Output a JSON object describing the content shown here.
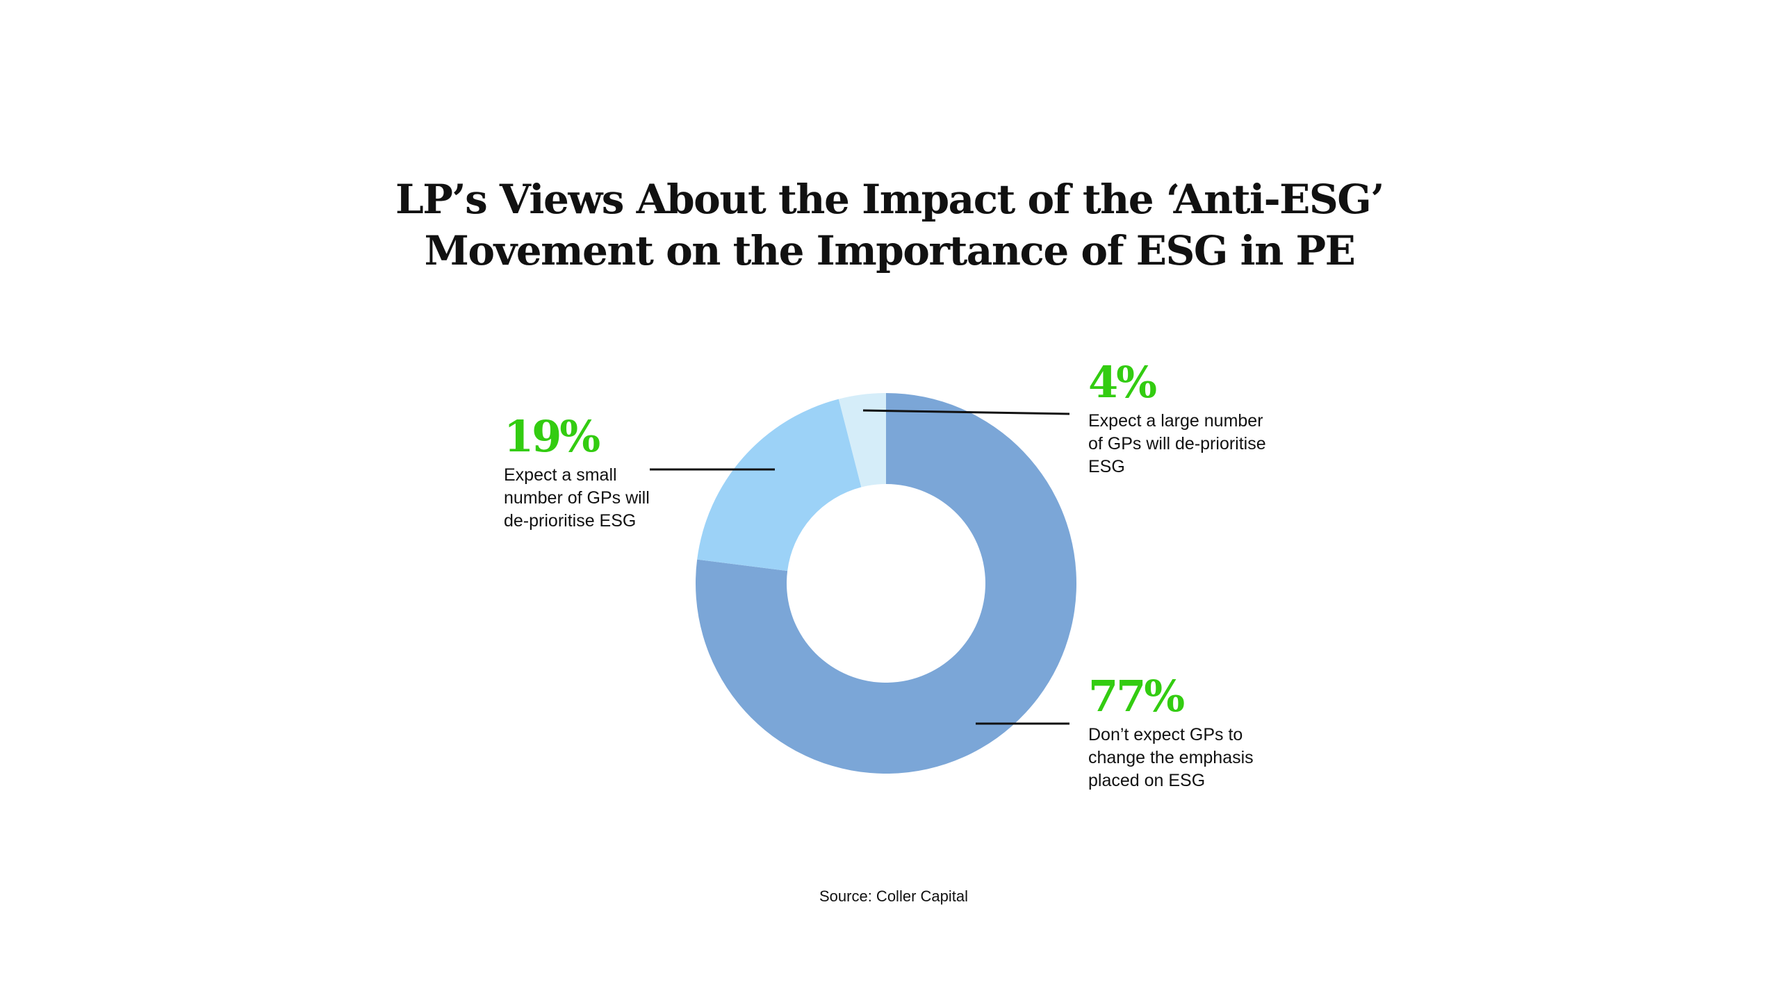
{
  "chart_data": {
    "type": "pie",
    "variant": "donut",
    "title": [
      "LP’s Views About the Impact of the ‘Anti-ESG’",
      "Movement on the Importance of ESG in PE"
    ],
    "slices": [
      {
        "value": 77,
        "label": "77%",
        "description": "Don’t expect GPs to change the emphasis placed on ESG",
        "desc_lines": [
          "Don’t expect GPs to",
          "change the emphasis",
          "placed on ESG"
        ],
        "color": "#7BA6D7"
      },
      {
        "value": 19,
        "label": "19%",
        "description": "Expect a small number of GPs will de-prioritise ESG",
        "desc_lines": [
          "Expect a small",
          "number of GPs will",
          "de-prioritise ESG"
        ],
        "color": "#9CD2F7"
      },
      {
        "value": 4,
        "label": "4%",
        "description": "Expect a large number of GPs will de-prioritise ESG",
        "desc_lines": [
          "Expect a large number",
          "of GPs will de-prioritise",
          "ESG"
        ],
        "color": "#D5EDF9"
      }
    ],
    "label_color": "#33CC11",
    "source": "Source: Coller Capital"
  }
}
